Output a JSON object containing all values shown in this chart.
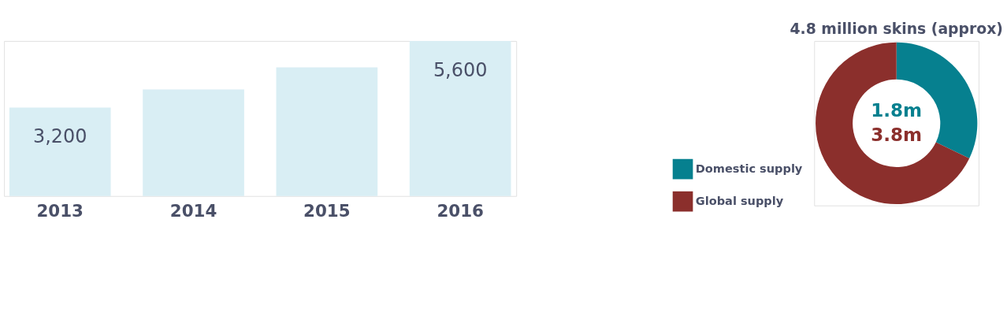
{
  "chart_data": [
    {
      "type": "bar",
      "categories": [
        "2013",
        "2014",
        "2015",
        "2016"
      ],
      "values": [
        3200,
        3850,
        4650,
        5600
      ],
      "value_labels": [
        "3,200",
        null,
        null,
        "5,600"
      ],
      "color": "#d9eef4",
      "grid": false
    },
    {
      "type": "donut",
      "title": "4.8 million skins (approx)",
      "categories": [
        "Domestic supply",
        "Global supply"
      ],
      "values": [
        1.8,
        3.8
      ],
      "colors": [
        "#06808f",
        "#8b2f2c"
      ],
      "value_labels": [
        "1.8m",
        "3.8m"
      ],
      "legend": "left"
    }
  ]
}
